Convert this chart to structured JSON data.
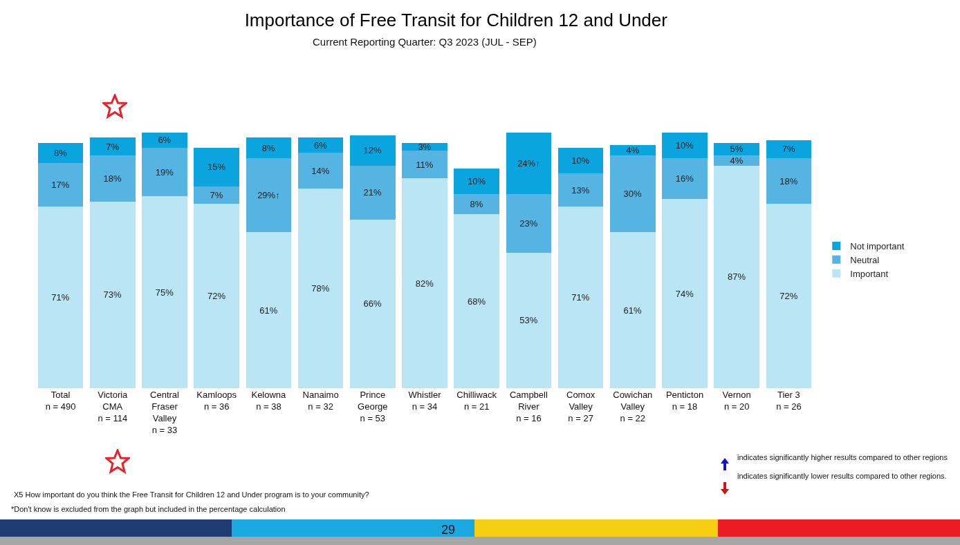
{
  "chart_data": {
    "type": "bar",
    "stacked": true,
    "title": "Importance of Free Transit for Children 12 and Under",
    "subtitle": "Current Reporting Quarter: Q3 2023 (JUL - SEP)",
    "categories": [
      "Total\nn = 490",
      "Victoria\nCMA\nn = 114",
      "Central\nFraser\nValley\nn = 33",
      "Kamloops\nn = 36",
      "Kelowna\nn = 38",
      "Nanaimo\nn = 32",
      "Prince\nGeorge\nn = 53",
      "Whistler\nn = 34",
      "Chilliwack\nn = 21",
      "Campbell\nRiver\nn = 16",
      "Comox\nValley\nn = 27",
      "Cowichan\nValley\nn = 22",
      "Penticton\nn = 18",
      "Vernon\nn = 20",
      "Tier 3\nn = 26"
    ],
    "series": [
      {
        "name": "Important",
        "color": "#b9e5f5",
        "values": [
          71,
          73,
          75,
          72,
          61,
          78,
          66,
          82,
          68,
          53,
          71,
          61,
          74,
          87,
          72
        ],
        "value_labels": [
          "71%",
          "73%",
          "75%",
          "72%",
          "61%",
          "78%",
          "66%",
          "82%",
          "68%",
          "53%",
          "71%",
          "61%",
          "74%",
          "87%",
          "72%"
        ]
      },
      {
        "name": "Neutral",
        "color": "#56b4e3",
        "values": [
          17,
          18,
          19,
          7,
          29,
          14,
          21,
          11,
          8,
          23,
          13,
          30,
          16,
          4,
          18
        ],
        "value_labels": [
          "17%",
          "18%",
          "19%",
          "7%",
          "29%↑",
          "14%",
          "21%",
          "11%",
          "8%",
          "23%",
          "13%",
          "30%",
          "16%",
          "4%",
          "18%"
        ]
      },
      {
        "name": "Not important",
        "color": "#0aa5de",
        "values": [
          8,
          7,
          6,
          15,
          8,
          6,
          12,
          3,
          10,
          24,
          10,
          4,
          10,
          5,
          7
        ],
        "value_labels": [
          "8%",
          "7%",
          "6%",
          "15%",
          "8%",
          "6%",
          "12%",
          "3%",
          "10%",
          "24%↑",
          "10%",
          "4%",
          "10%",
          "5%",
          "7%"
        ]
      }
    ],
    "legend": "right",
    "grid": false,
    "annotations": [
      "X5 How important do you think the Free Transit for Children 12 and Under program is to your community?",
      "*Don't know is excluded from the graph but included in the percentage calculation",
      "indicates significantly higher results compared to other regions",
      "indicates significantly lower results compared to other regions.",
      "29"
    ]
  }
}
